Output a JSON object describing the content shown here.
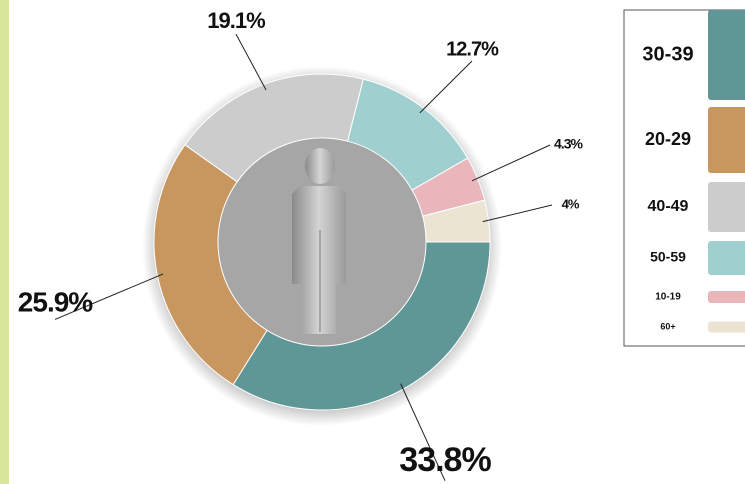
{
  "chart_data": {
    "type": "pie",
    "donut": true,
    "categories": [
      "30-39",
      "20-29",
      "40-49",
      "50-59",
      "10-19",
      "60+"
    ],
    "values": [
      33.8,
      25.9,
      19.1,
      12.7,
      4.3,
      4
    ],
    "value_labels": [
      "33.8%",
      "25.9%",
      "19.1%",
      "12.7%",
      "4.3%",
      "4%"
    ],
    "colors": [
      "#5f9796",
      "#c8965f",
      "#cccccc",
      "#9fcfcf",
      "#e9b6bc",
      "#ebe4d3"
    ],
    "legend": "right"
  }
}
